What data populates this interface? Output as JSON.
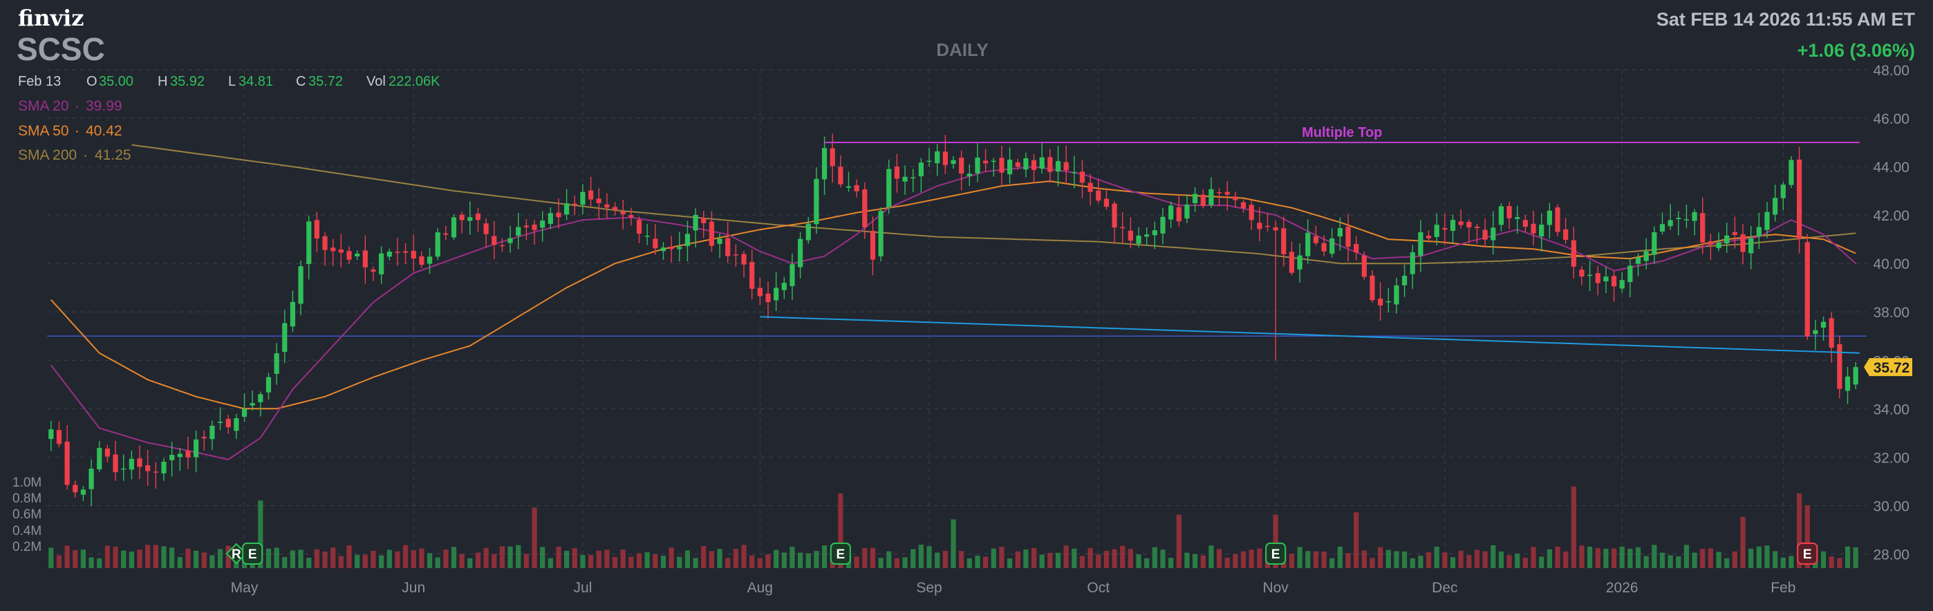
{
  "header": {
    "brand": "finviz",
    "ticker": "SCSC",
    "timeframe": "DAILY",
    "datetime": "Sat FEB 14 2026 11:55 AM ET",
    "change": "+1.06 (3.06%)"
  },
  "ohlc": {
    "date": "Feb 13",
    "open_label": "O",
    "open": "35.00",
    "high_label": "H",
    "high": "35.92",
    "low_label": "L",
    "low": "34.81",
    "close_label": "C",
    "close": "35.72",
    "vol_label": "Vol",
    "volume": "222.06K"
  },
  "indicators": [
    {
      "label": "SMA 20",
      "value": "39.99",
      "color": "#9c2f8a"
    },
    {
      "label": "SMA 50",
      "value": "40.42",
      "color": "#e8872b"
    },
    {
      "label": "SMA 200",
      "value": "41.25",
      "color": "#9a8240"
    }
  ],
  "colors": {
    "background": "#22262f",
    "up": "#2fbf5a",
    "down": "#ef3f4a",
    "grid": "#3a404c",
    "axis_text": "#8b919c",
    "change": "#2fbf5a",
    "resistance": "#c43fd4",
    "support": "#1e9be0",
    "horizontal": "#3b55c9",
    "price_tag": "#f2c12e"
  },
  "chart_data": {
    "type": "candlestick",
    "ylim": [
      27.5,
      48.0
    ],
    "yticks": [
      "48.00",
      "46.00",
      "44.00",
      "42.00",
      "40.00",
      "38.00",
      "36.00",
      "34.00",
      "32.00",
      "30.00",
      "28.00"
    ],
    "volume_ticks": [
      "1.0M",
      "0.8M",
      "0.6M",
      "0.4M",
      "0.2M"
    ],
    "x_months": [
      {
        "label": "May",
        "idx": 24
      },
      {
        "label": "Jun",
        "idx": 45
      },
      {
        "label": "Jul",
        "idx": 66
      },
      {
        "label": "Aug",
        "idx": 88
      },
      {
        "label": "Sep",
        "idx": 109
      },
      {
        "label": "Oct",
        "idx": 130
      },
      {
        "label": "Nov",
        "idx": 152
      },
      {
        "label": "Dec",
        "idx": 173
      },
      {
        "label": "2026",
        "idx": 195
      },
      {
        "label": "Feb",
        "idx": 215
      }
    ],
    "num_bars": 225,
    "anchors": [
      [
        0,
        33.5
      ],
      [
        2,
        31.0
      ],
      [
        4,
        30.5
      ],
      [
        6,
        32.5
      ],
      [
        8,
        31.2
      ],
      [
        10,
        31.8
      ],
      [
        12,
        31.2
      ],
      [
        14,
        31.9
      ],
      [
        16,
        32.0
      ],
      [
        18,
        32.6
      ],
      [
        20,
        33.0
      ],
      [
        22,
        33.5
      ],
      [
        24,
        33.7
      ],
      [
        26,
        34.5
      ],
      [
        28,
        36.0
      ],
      [
        30,
        38.5
      ],
      [
        32,
        41.5
      ],
      [
        34,
        40.8
      ],
      [
        36,
        40.5
      ],
      [
        38,
        40.1
      ],
      [
        40,
        39.5
      ],
      [
        42,
        40.8
      ],
      [
        44,
        40.4
      ],
      [
        46,
        40.0
      ],
      [
        48,
        41.0
      ],
      [
        50,
        42.0
      ],
      [
        52,
        41.8
      ],
      [
        54,
        41.2
      ],
      [
        56,
        40.8
      ],
      [
        58,
        41.6
      ],
      [
        60,
        41.5
      ],
      [
        62,
        42.0
      ],
      [
        64,
        42.2
      ],
      [
        66,
        42.7
      ],
      [
        68,
        42.4
      ],
      [
        70,
        42.2
      ],
      [
        72,
        41.6
      ],
      [
        74,
        41.0
      ],
      [
        76,
        40.6
      ],
      [
        78,
        40.8
      ],
      [
        80,
        41.8
      ],
      [
        82,
        41.0
      ],
      [
        84,
        40.6
      ],
      [
        86,
        40.2
      ],
      [
        88,
        38.3
      ],
      [
        90,
        38.9
      ],
      [
        92,
        40.0
      ],
      [
        94,
        41.9
      ],
      [
        96,
        44.5
      ],
      [
        98,
        43.0
      ],
      [
        100,
        42.8
      ],
      [
        102,
        40.5
      ],
      [
        104,
        44.2
      ],
      [
        106,
        43.5
      ],
      [
        108,
        44.0
      ],
      [
        110,
        44.5
      ],
      [
        112,
        44.0
      ],
      [
        114,
        43.8
      ],
      [
        116,
        44.4
      ],
      [
        118,
        44.1
      ],
      [
        120,
        43.9
      ],
      [
        122,
        44.2
      ],
      [
        124,
        44.0
      ],
      [
        126,
        43.8
      ],
      [
        128,
        43.5
      ],
      [
        130,
        42.8
      ],
      [
        132,
        41.8
      ],
      [
        134,
        40.8
      ],
      [
        136,
        41.2
      ],
      [
        138,
        42.2
      ],
      [
        140,
        42.0
      ],
      [
        142,
        42.6
      ],
      [
        144,
        42.8
      ],
      [
        146,
        42.5
      ],
      [
        148,
        42.1
      ],
      [
        150,
        41.6
      ],
      [
        152,
        41.1
      ],
      [
        154,
        39.8
      ],
      [
        156,
        41.0
      ],
      [
        158,
        40.6
      ],
      [
        160,
        41.3
      ],
      [
        162,
        40.3
      ],
      [
        164,
        38.7
      ],
      [
        166,
        38.1
      ],
      [
        168,
        39.4
      ],
      [
        170,
        41.0
      ],
      [
        172,
        41.5
      ],
      [
        174,
        41.8
      ],
      [
        176,
        41.3
      ],
      [
        178,
        41.0
      ],
      [
        180,
        42.4
      ],
      [
        182,
        41.8
      ],
      [
        184,
        41.2
      ],
      [
        186,
        42.0
      ],
      [
        188,
        40.8
      ],
      [
        190,
        39.6
      ],
      [
        192,
        39.4
      ],
      [
        194,
        39.2
      ],
      [
        196,
        39.8
      ],
      [
        198,
        40.8
      ],
      [
        200,
        41.4
      ],
      [
        202,
        41.6
      ],
      [
        204,
        41.8
      ],
      [
        206,
        40.6
      ],
      [
        208,
        41.0
      ],
      [
        210,
        40.8
      ],
      [
        212,
        41.8
      ],
      [
        214,
        43.0
      ],
      [
        216,
        44.2
      ],
      [
        218,
        37.2
      ],
      [
        220,
        37.8
      ],
      [
        222,
        35.0
      ],
      [
        224,
        35.72
      ]
    ],
    "sma20_anchors": [
      [
        0,
        35.8
      ],
      [
        6,
        33.2
      ],
      [
        12,
        32.6
      ],
      [
        18,
        32.2
      ],
      [
        22,
        31.9
      ],
      [
        26,
        32.8
      ],
      [
        30,
        34.8
      ],
      [
        35,
        36.6
      ],
      [
        40,
        38.4
      ],
      [
        45,
        39.6
      ],
      [
        50,
        40.2
      ],
      [
        55,
        40.8
      ],
      [
        60,
        41.3
      ],
      [
        66,
        41.8
      ],
      [
        72,
        41.9
      ],
      [
        78,
        41.6
      ],
      [
        84,
        41.2
      ],
      [
        88,
        40.5
      ],
      [
        92,
        40.0
      ],
      [
        96,
        40.3
      ],
      [
        100,
        41.2
      ],
      [
        104,
        42.3
      ],
      [
        110,
        43.2
      ],
      [
        116,
        43.8
      ],
      [
        122,
        44.0
      ],
      [
        128,
        43.7
      ],
      [
        134,
        43.0
      ],
      [
        140,
        42.4
      ],
      [
        146,
        42.4
      ],
      [
        152,
        42.0
      ],
      [
        158,
        41.0
      ],
      [
        164,
        40.2
      ],
      [
        170,
        40.3
      ],
      [
        176,
        40.9
      ],
      [
        182,
        41.4
      ],
      [
        188,
        40.7
      ],
      [
        194,
        39.7
      ],
      [
        200,
        40.1
      ],
      [
        206,
        40.8
      ],
      [
        212,
        41.1
      ],
      [
        216,
        41.8
      ],
      [
        220,
        41.2
      ],
      [
        224,
        40.0
      ]
    ],
    "sma50_anchors": [
      [
        0,
        38.5
      ],
      [
        6,
        36.3
      ],
      [
        12,
        35.2
      ],
      [
        18,
        34.5
      ],
      [
        24,
        34.0
      ],
      [
        28,
        34.0
      ],
      [
        34,
        34.5
      ],
      [
        40,
        35.3
      ],
      [
        46,
        36.0
      ],
      [
        52,
        36.6
      ],
      [
        58,
        37.8
      ],
      [
        64,
        39.0
      ],
      [
        70,
        40.0
      ],
      [
        76,
        40.6
      ],
      [
        82,
        41.0
      ],
      [
        88,
        41.4
      ],
      [
        94,
        41.7
      ],
      [
        100,
        42.1
      ],
      [
        106,
        42.4
      ],
      [
        112,
        42.8
      ],
      [
        118,
        43.2
      ],
      [
        124,
        43.4
      ],
      [
        130,
        43.1
      ],
      [
        136,
        42.9
      ],
      [
        142,
        42.8
      ],
      [
        148,
        42.7
      ],
      [
        154,
        42.3
      ],
      [
        160,
        41.7
      ],
      [
        166,
        41.0
      ],
      [
        172,
        40.9
      ],
      [
        178,
        40.7
      ],
      [
        184,
        40.6
      ],
      [
        190,
        40.3
      ],
      [
        196,
        40.2
      ],
      [
        202,
        40.6
      ],
      [
        208,
        41.0
      ],
      [
        214,
        41.2
      ],
      [
        220,
        41.0
      ],
      [
        224,
        40.42
      ]
    ],
    "sma200_anchors": [
      [
        10,
        44.9
      ],
      [
        30,
        44.0
      ],
      [
        50,
        43.0
      ],
      [
        70,
        42.2
      ],
      [
        90,
        41.6
      ],
      [
        110,
        41.1
      ],
      [
        130,
        40.9
      ],
      [
        150,
        40.4
      ],
      [
        160,
        40.0
      ],
      [
        170,
        40.0
      ],
      [
        180,
        40.1
      ],
      [
        190,
        40.3
      ],
      [
        200,
        40.6
      ],
      [
        210,
        40.8
      ],
      [
        224,
        41.25
      ]
    ],
    "annotations": [
      {
        "type": "resistance",
        "label": "Multiple Top",
        "from": 96,
        "to": 225,
        "y": 45.0
      },
      {
        "type": "support",
        "from": 88,
        "to": 225,
        "y_from": 37.8,
        "y_to": 36.3
      },
      {
        "type": "horizontal",
        "from": 0,
        "to": 225,
        "y": 37.0
      }
    ],
    "events": [
      {
        "idx": 23,
        "label": "R",
        "kind": "green"
      },
      {
        "idx": 25,
        "label": "E",
        "kind": "green"
      },
      {
        "idx": 98,
        "label": "E",
        "kind": "green"
      },
      {
        "idx": 152,
        "label": "E",
        "kind": "green"
      },
      {
        "idx": 218,
        "label": "E",
        "kind": "red"
      }
    ],
    "last_price": "35.72"
  }
}
